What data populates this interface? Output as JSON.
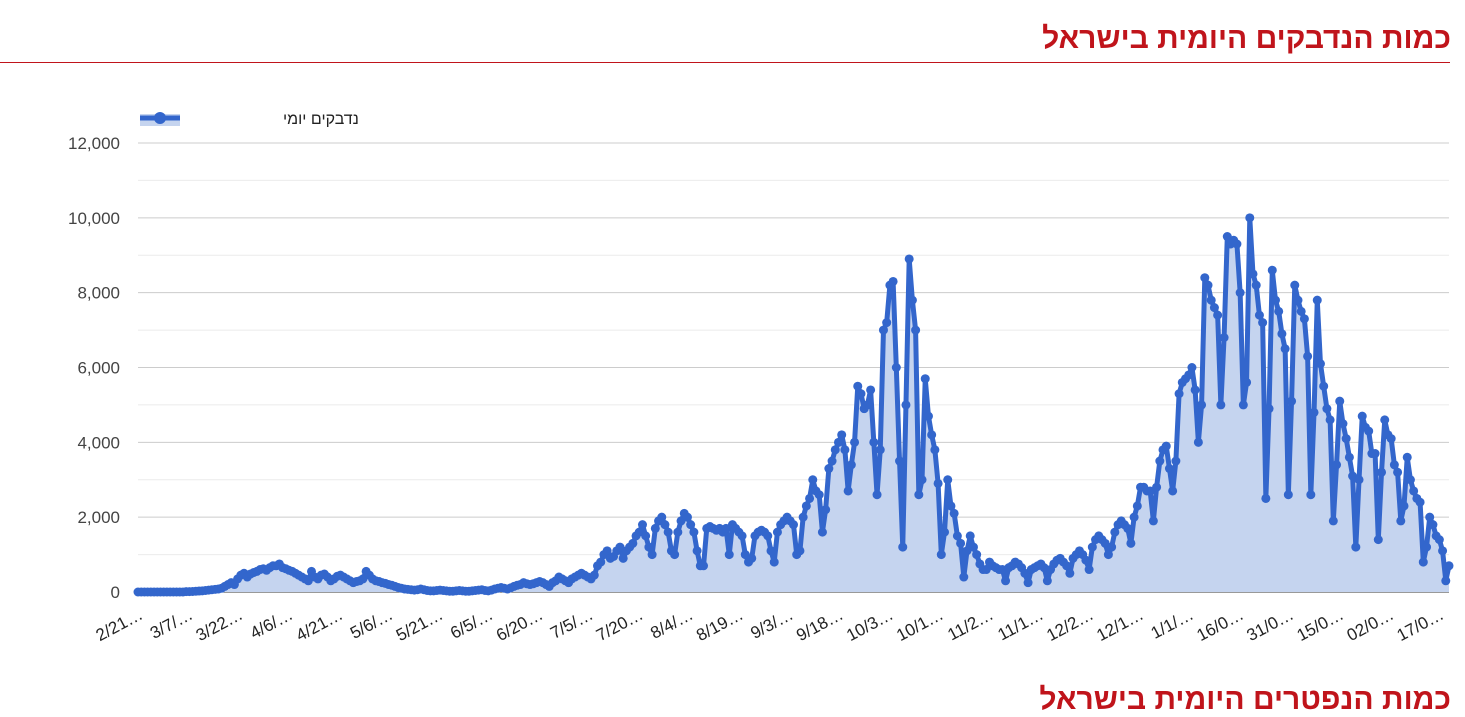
{
  "page": {
    "title": "כמות הנדבקים היומית בישראל",
    "next_section_title": "כמות הנפטרים היומית בישראל"
  },
  "chart_data": {
    "type": "area",
    "title": "",
    "xlabel": "",
    "ylabel": "",
    "ylim": [
      0,
      12000
    ],
    "y_ticks": [
      "0",
      "2,000",
      "4,000",
      "6,000",
      "8,000",
      "10,000",
      "12,000"
    ],
    "y_tick_values": [
      0,
      2000,
      4000,
      6000,
      8000,
      10000,
      12000
    ],
    "grid": true,
    "legend_position": "top-left",
    "x_tick_labels": [
      "2/21…",
      "3/7/…",
      "3/22…",
      "4/6/…",
      "4/21…",
      "5/6/…",
      "5/21…",
      "6/5/…",
      "6/20…",
      "7/5/…",
      "7/20…",
      "8/4/…",
      "8/19…",
      "9/3/…",
      "9/18…",
      "10/3…",
      "10/1…",
      "11/2…",
      "11/1…",
      "12/2…",
      "12/1…",
      "1/1/…",
      "16/0…",
      "31/0…",
      "15/0…",
      "02/0…",
      "17/0…"
    ],
    "colors": {
      "line": "#3366cc",
      "fill": "#c5d4ef",
      "grid": "#cccccc",
      "title": "#c0141b"
    },
    "series": [
      {
        "name": "נדבקים יומי",
        "values": [
          0,
          0,
          0,
          0,
          0,
          0,
          0,
          0,
          0,
          0,
          0,
          0,
          0,
          0,
          0,
          10,
          10,
          15,
          20,
          25,
          30,
          40,
          50,
          60,
          70,
          80,
          100,
          150,
          200,
          250,
          200,
          350,
          450,
          500,
          400,
          480,
          520,
          550,
          600,
          620,
          580,
          650,
          700,
          700,
          750,
          650,
          620,
          580,
          550,
          500,
          450,
          400,
          350,
          300,
          550,
          400,
          350,
          450,
          480,
          400,
          300,
          350,
          420,
          450,
          400,
          350,
          300,
          250,
          280,
          300,
          350,
          550,
          450,
          350,
          300,
          280,
          250,
          230,
          200,
          180,
          150,
          120,
          100,
          80,
          70,
          60,
          50,
          60,
          80,
          60,
          40,
          30,
          30,
          40,
          50,
          40,
          30,
          20,
          20,
          30,
          40,
          30,
          20,
          20,
          30,
          40,
          50,
          60,
          40,
          30,
          50,
          80,
          100,
          120,
          100,
          80,
          110,
          150,
          180,
          200,
          250,
          220,
          200,
          220,
          250,
          280,
          250,
          200,
          150,
          250,
          300,
          400,
          350,
          300,
          250,
          350,
          400,
          450,
          500,
          450,
          400,
          350,
          450,
          700,
          800,
          1000,
          1100,
          900,
          950,
          1100,
          1200,
          900,
          1100,
          1200,
          1300,
          1500,
          1600,
          1800,
          1500,
          1200,
          1000,
          1700,
          1900,
          2000,
          1800,
          1600,
          1100,
          1000,
          1600,
          1900,
          2100,
          2000,
          1800,
          1600,
          1100,
          700,
          700,
          1700,
          1750,
          1700,
          1650,
          1700,
          1600,
          1700,
          1000,
          1800,
          1700,
          1600,
          1500,
          1000,
          800,
          900,
          1500,
          1600,
          1650,
          1600,
          1500,
          1100,
          800,
          1600,
          1800,
          1900,
          2000,
          1900,
          1800,
          1000,
          1100,
          2000,
          2300,
          2500,
          3000,
          2700,
          2600,
          1600,
          2200,
          3300,
          3500,
          3800,
          4000,
          4200,
          3800,
          2700,
          3400,
          4000,
          5500,
          5300,
          4900,
          5000,
          5400,
          4000,
          2600,
          3800,
          7000,
          7200,
          8200,
          8300,
          6000,
          3500,
          1200,
          5000,
          8900,
          7800,
          7000,
          2600,
          3000,
          5700,
          4700,
          4200,
          3800,
          2900,
          1000,
          1600,
          3000,
          2300,
          2100,
          1500,
          1300,
          400,
          1100,
          1500,
          1200,
          1000,
          750,
          600,
          600,
          800,
          700,
          650,
          600,
          600,
          300,
          650,
          700,
          800,
          750,
          650,
          500,
          250,
          600,
          650,
          700,
          750,
          650,
          300,
          600,
          750,
          850,
          900,
          800,
          700,
          500,
          900,
          1000,
          1100,
          1000,
          850,
          600,
          1200,
          1400,
          1500,
          1400,
          1300,
          1000,
          1200,
          1600,
          1800,
          1900,
          1800,
          1700,
          1300,
          2000,
          2300,
          2800,
          2800,
          2700,
          2700,
          1900,
          2800,
          3500,
          3800,
          3900,
          3300,
          2700,
          3500,
          5300,
          5600,
          5700,
          5800,
          6000,
          5400,
          4000,
          5000,
          8400,
          8200,
          7800,
          7600,
          7400,
          5000,
          6800,
          9500,
          9300,
          9400,
          9300,
          8000,
          5000,
          5600,
          10000,
          8500,
          8200,
          7400,
          7200,
          2500,
          4900,
          8600,
          7800,
          7500,
          6900,
          6500,
          2600,
          5100,
          8200,
          7800,
          7500,
          7300,
          6300,
          2600,
          4800,
          7800,
          6100,
          5500,
          4900,
          4600,
          1900,
          3400,
          5100,
          4500,
          4100,
          3600,
          3100,
          1200,
          3000,
          4700,
          4400,
          4300,
          3700,
          3700,
          1400,
          3200,
          4600,
          4200,
          4100,
          3400,
          3200,
          1900,
          2300,
          3600,
          3000,
          2700,
          2500,
          2400,
          800,
          1200,
          2000,
          1800,
          1500,
          1400,
          1100,
          300,
          700
        ]
      }
    ]
  }
}
